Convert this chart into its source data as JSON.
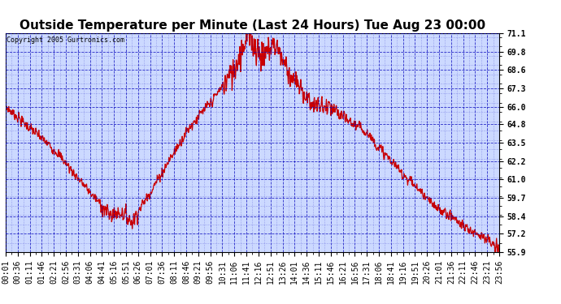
{
  "title": "Outside Temperature per Minute (Last 24 Hours) Tue Aug 23 00:00",
  "copyright": "Copyright 2005 Gurtronics.com",
  "ymin": 55.9,
  "ymax": 71.1,
  "yticks": [
    55.9,
    57.2,
    58.4,
    59.7,
    61.0,
    62.2,
    63.5,
    64.8,
    66.0,
    67.3,
    68.6,
    69.8,
    71.1
  ],
  "xtick_labels": [
    "00:01",
    "00:36",
    "01:11",
    "01:46",
    "02:21",
    "02:56",
    "03:31",
    "04:06",
    "04:41",
    "05:16",
    "05:51",
    "06:26",
    "07:01",
    "07:36",
    "08:11",
    "08:46",
    "09:21",
    "09:56",
    "10:31",
    "11:06",
    "11:41",
    "12:16",
    "12:51",
    "13:26",
    "14:01",
    "14:36",
    "15:11",
    "15:46",
    "16:21",
    "16:56",
    "17:31",
    "18:06",
    "18:41",
    "19:16",
    "19:51",
    "20:26",
    "21:01",
    "21:36",
    "22:11",
    "22:46",
    "23:21",
    "23:56"
  ],
  "line_color": "#cc0000",
  "background_color": "#ffffff",
  "plot_bg_color": "#ccd9ff",
  "grid_color": "#0000bb",
  "title_fontsize": 11,
  "copyright_fontsize": 6,
  "tick_fontsize": 7
}
